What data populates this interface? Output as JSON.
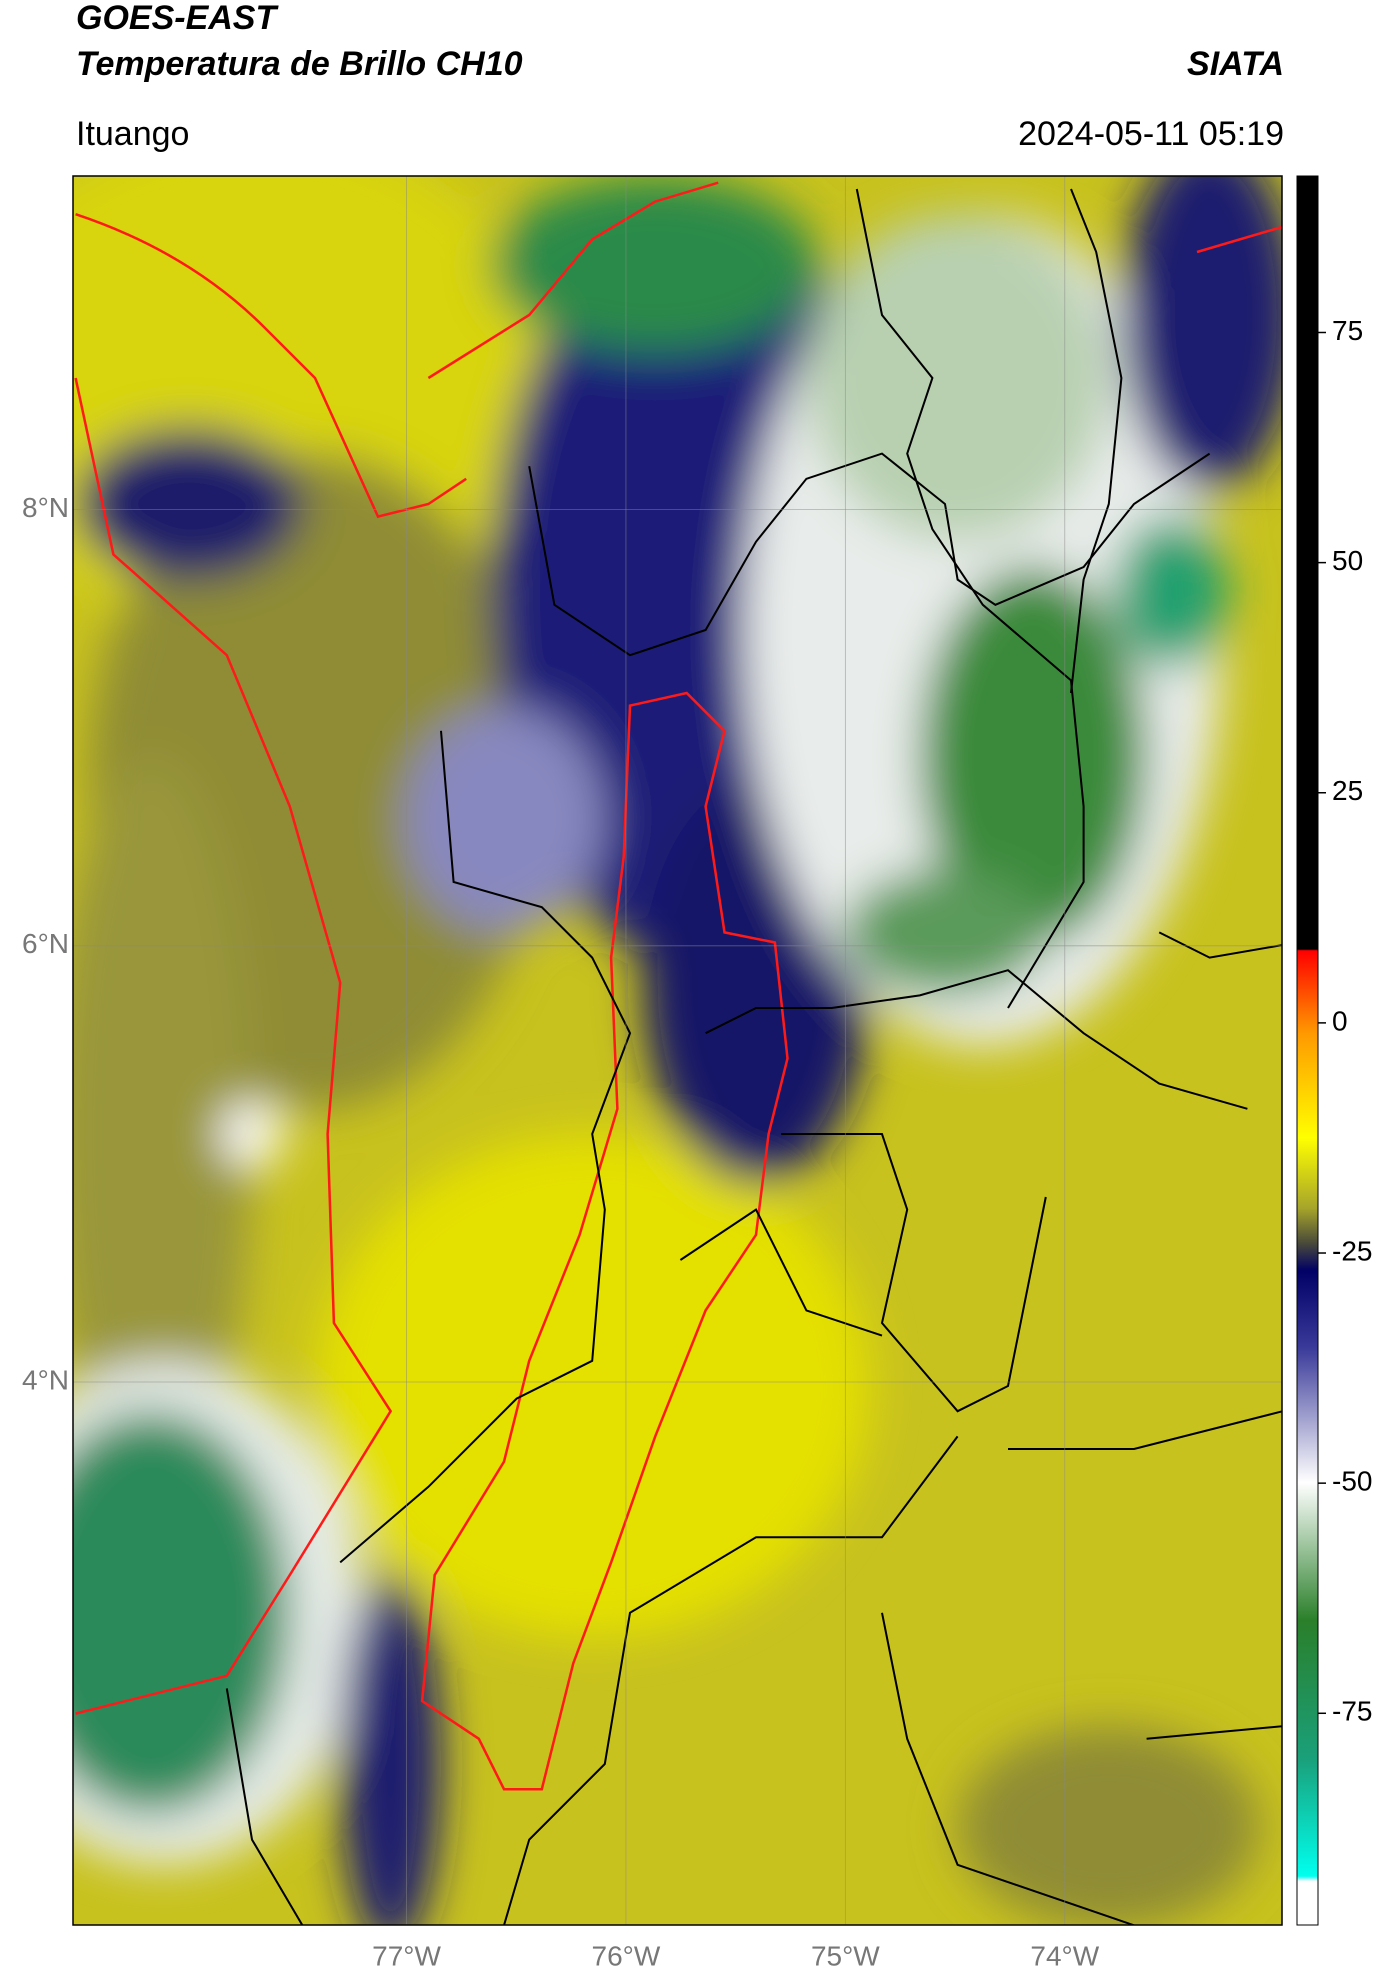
{
  "header": {
    "title": "GOES-EAST",
    "subtitle": "Temperatura de Brillo CH10",
    "org": "SIATA",
    "region": "Ituango",
    "timestamp": "2024-05-11 05:19"
  },
  "map": {
    "xlim": [
      -78.52,
      -73.01
    ],
    "ylim": [
      1.51,
      9.53
    ],
    "xticks": [
      {
        "value": -77,
        "label": "77°W"
      },
      {
        "value": -76,
        "label": "76°W"
      },
      {
        "value": -75,
        "label": "75°W"
      },
      {
        "value": -74,
        "label": "74°W"
      }
    ],
    "yticks": [
      {
        "value": 8,
        "label": "8°N"
      },
      {
        "value": 6,
        "label": "6°N"
      },
      {
        "value": 4,
        "label": "4°N"
      }
    ]
  },
  "colorbar": {
    "lim": [
      -98,
      92
    ],
    "ticks": [
      75,
      50,
      25,
      0,
      -25,
      -50,
      -75
    ]
  }
}
